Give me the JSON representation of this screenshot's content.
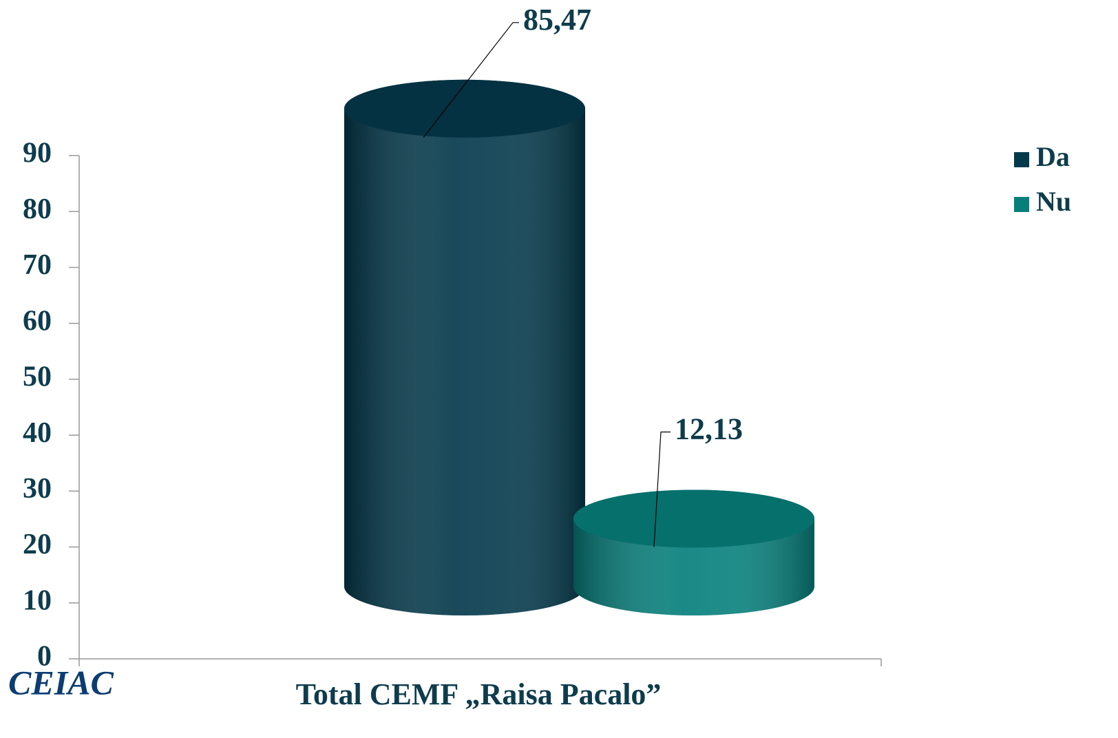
{
  "chart_data": {
    "type": "bar3d-cylinder",
    "categories": [
      "Total CEMF „Raisa Pacalo”"
    ],
    "series": [
      {
        "name": "Da",
        "color": "#053a4c",
        "values": [
          85.47
        ],
        "value_labels": [
          "85,47"
        ]
      },
      {
        "name": "Nu",
        "color": "#07807c",
        "values": [
          12.13
        ],
        "value_labels": [
          "12,13"
        ]
      }
    ],
    "ylim": [
      0,
      90
    ],
    "yticks": [
      0,
      10,
      20,
      30,
      40,
      50,
      60,
      70,
      80,
      90
    ],
    "legend": "right"
  },
  "logo": "CEIAC"
}
